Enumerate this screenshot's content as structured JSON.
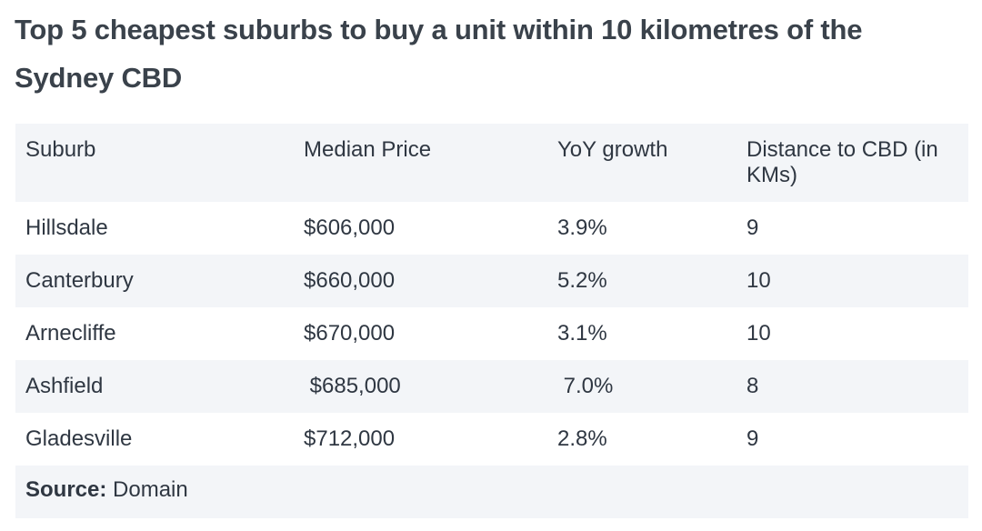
{
  "title": "Top 5 cheapest suburbs to buy a unit within 10 kilometres of the Sydney CBD",
  "table": {
    "headers": [
      "Suburb",
      "Median Price",
      "YoY growth",
      "Distance to CBD (in KMs)"
    ],
    "rows": [
      [
        "Hillsdale",
        "$606,000",
        "3.9%",
        "9"
      ],
      [
        "Canterbury",
        "$660,000",
        "5.2%",
        "10"
      ],
      [
        "Arnecliffe",
        "$670,000",
        "3.1%",
        " 10"
      ],
      [
        "Ashfield",
        " $685,000",
        " 7.0%",
        " 8"
      ],
      [
        "Gladesville",
        "$712,000",
        "2.8%",
        "9"
      ]
    ]
  },
  "source": {
    "label": "Source:",
    "value": " Domain"
  }
}
